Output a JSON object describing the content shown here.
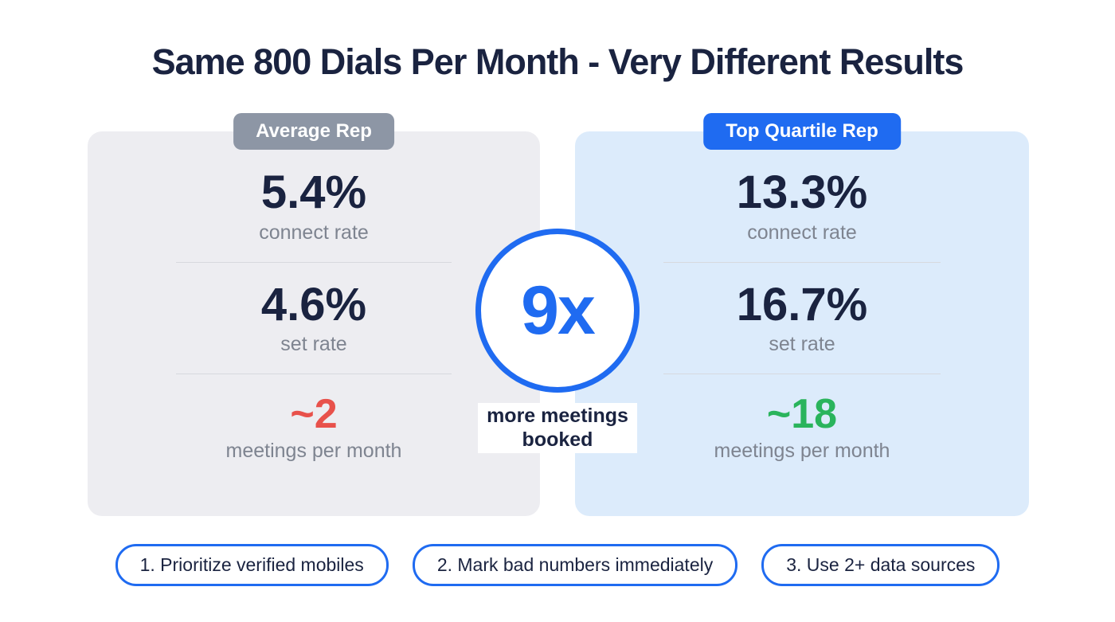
{
  "title": "Same 800 Dials Per Month - Very Different Results",
  "colors": {
    "navy": "#1a2340",
    "blue": "#1f6bf1",
    "badge_gray": "#8d96a5",
    "card_gray_bg": "#ededf1",
    "card_blue_bg": "#dcebfb",
    "label_gray": "#7e8490",
    "value_red": "#e8514b",
    "value_green": "#2ab45c",
    "divider": "#d7d9de"
  },
  "cards": {
    "left": {
      "badge": "Average Rep",
      "stats": [
        {
          "value": "5.4%",
          "label": "connect rate"
        },
        {
          "value": "4.6%",
          "label": "set rate"
        },
        {
          "value": "~2",
          "label": "meetings per month"
        }
      ]
    },
    "right": {
      "badge": "Top Quartile Rep",
      "stats": [
        {
          "value": "13.3%",
          "label": "connect rate"
        },
        {
          "value": "16.7%",
          "label": "set rate"
        },
        {
          "value": "~18",
          "label": "meetings per month"
        }
      ]
    }
  },
  "center": {
    "multiplier": "9x",
    "caption": "more meetings booked"
  },
  "tips": [
    {
      "label": "1. Prioritize verified mobiles"
    },
    {
      "label": "2. Mark bad numbers immediately"
    },
    {
      "label": "3. Use 2+ data sources"
    }
  ],
  "chart_data": {
    "type": "table",
    "title": "Same 800 Dials Per Month - Very Different Results",
    "dials_per_month": 800,
    "categories": [
      "connect rate",
      "set rate",
      "meetings per month"
    ],
    "series": [
      {
        "name": "Average Rep",
        "values": [
          5.4,
          4.6,
          2
        ]
      },
      {
        "name": "Top Quartile Rep",
        "values": [
          13.3,
          16.7,
          18
        ]
      }
    ],
    "units": [
      "percent",
      "percent",
      "meetings"
    ],
    "annotation": "9x more meetings booked"
  }
}
